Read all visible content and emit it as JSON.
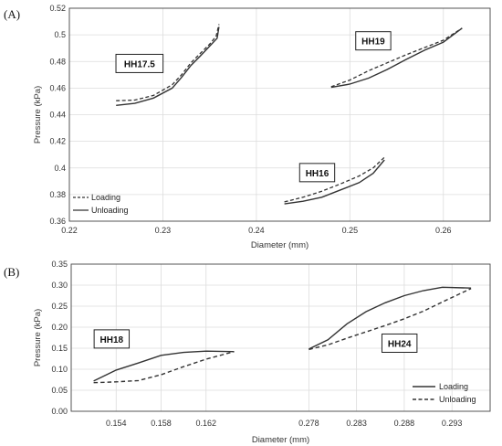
{
  "chart_data": [
    {
      "type": "line",
      "panel_label": "(A)",
      "xlabel": "Diameter (mm)",
      "ylabel": "Pressure (kPa)",
      "xlim": [
        0.22,
        0.265
      ],
      "ylim": [
        0.36,
        0.52
      ],
      "xticks": [
        0.22,
        0.23,
        0.24,
        0.25,
        0.26
      ],
      "xtick_labels": [
        "0.22",
        "0.23",
        "0.24",
        "0.25",
        "0.26"
      ],
      "yticks": [
        0.36,
        0.38,
        0.4,
        0.42,
        0.44,
        0.46,
        0.48,
        0.5,
        0.52
      ],
      "ytick_labels": [
        "0.36",
        "0.38",
        "0.4",
        "0.42",
        "0.44",
        "0.46",
        "0.48",
        "0.5",
        "0.52"
      ],
      "grid": true,
      "legend_position": "bottom-left",
      "legend": [
        {
          "name": "Loading",
          "style": "dashed"
        },
        {
          "name": "Unloading",
          "style": "solid"
        }
      ],
      "groups": [
        {
          "label": "HH17.5",
          "label_at": [
            0.2275,
            0.4785
          ],
          "loading": [
            [
              0.225,
              0.4505
            ],
            [
              0.227,
              0.451
            ],
            [
              0.229,
              0.4545
            ],
            [
              0.231,
              0.4625
            ],
            [
              0.232,
              0.47
            ],
            [
              0.233,
              0.479
            ],
            [
              0.234,
              0.486
            ],
            [
              0.235,
              0.493
            ],
            [
              0.2357,
              0.499
            ],
            [
              0.236,
              0.508
            ]
          ],
          "unloading": [
            [
              0.225,
              0.447
            ],
            [
              0.227,
              0.4485
            ],
            [
              0.229,
              0.4525
            ],
            [
              0.231,
              0.46
            ],
            [
              0.232,
              0.468
            ],
            [
              0.233,
              0.477
            ],
            [
              0.234,
              0.484
            ],
            [
              0.235,
              0.4915
            ],
            [
              0.2358,
              0.4975
            ],
            [
              0.236,
              0.506
            ]
          ]
        },
        {
          "label": "HH19",
          "label_at": [
            0.2525,
            0.4955
          ],
          "loading": [
            [
              0.248,
              0.461
            ],
            [
              0.25,
              0.466
            ],
            [
              0.252,
              0.473
            ],
            [
              0.254,
              0.479
            ],
            [
              0.256,
              0.485
            ],
            [
              0.258,
              0.4905
            ],
            [
              0.26,
              0.496
            ],
            [
              0.262,
              0.505
            ]
          ],
          "unloading": [
            [
              0.248,
              0.4605
            ],
            [
              0.25,
              0.463
            ],
            [
              0.252,
              0.4675
            ],
            [
              0.254,
              0.474
            ],
            [
              0.256,
              0.4815
            ],
            [
              0.258,
              0.4885
            ],
            [
              0.26,
              0.4945
            ],
            [
              0.262,
              0.505
            ]
          ]
        },
        {
          "label": "HH16",
          "label_at": [
            0.2465,
            0.3965
          ],
          "loading": [
            [
              0.243,
              0.3745
            ],
            [
              0.245,
              0.378
            ],
            [
              0.247,
              0.3825
            ],
            [
              0.249,
              0.388
            ],
            [
              0.251,
              0.394
            ],
            [
              0.2525,
              0.4
            ],
            [
              0.2537,
              0.408
            ]
          ],
          "unloading": [
            [
              0.243,
              0.373
            ],
            [
              0.245,
              0.375
            ],
            [
              0.247,
              0.378
            ],
            [
              0.249,
              0.3835
            ],
            [
              0.251,
              0.389
            ],
            [
              0.2525,
              0.396
            ],
            [
              0.2537,
              0.406
            ]
          ]
        }
      ]
    },
    {
      "type": "line",
      "panel_label": "(B)",
      "xlabel": "Diameter (mm)",
      "ylabel": "Pressure (kPa)",
      "ylim": [
        0,
        0.35
      ],
      "xtick_labels": [
        "0.154",
        "0.158",
        "0.162",
        "0.278",
        "0.283",
        "0.288",
        "0.293"
      ],
      "yticks": [
        0,
        0.05,
        0.1,
        0.15,
        0.2,
        0.25,
        0.3,
        0.35
      ],
      "ytick_labels": [
        "0.00",
        "0.05",
        "0.10",
        "0.15",
        "0.20",
        "0.25",
        "0.30",
        "0.35"
      ],
      "grid": true,
      "broken_x_axis": true,
      "legend_position": "bottom-right",
      "legend": [
        {
          "name": "Loading",
          "style": "solid"
        },
        {
          "name": "Unloading",
          "style": "dashed"
        }
      ],
      "segments": [
        {
          "xlim": [
            0.15,
            0.166
          ],
          "xticks": [
            0.154,
            0.158,
            0.162
          ],
          "groups": [
            {
              "label": "HH18",
              "label_at": [
                0.1536,
                0.172
              ],
              "loading": [
                [
                  0.152,
                  0.072
                ],
                [
                  0.154,
                  0.098
                ],
                [
                  0.156,
                  0.115
                ],
                [
                  0.158,
                  0.133
                ],
                [
                  0.16,
                  0.14
                ],
                [
                  0.162,
                  0.143
                ],
                [
                  0.1645,
                  0.142
                ]
              ],
              "unloading": [
                [
                  0.152,
                  0.068
                ],
                [
                  0.154,
                  0.07
                ],
                [
                  0.156,
                  0.073
                ],
                [
                  0.158,
                  0.087
                ],
                [
                  0.16,
                  0.106
                ],
                [
                  0.162,
                  0.124
                ],
                [
                  0.1645,
                  0.142
                ]
              ]
            }
          ]
        },
        {
          "xlim": [
            0.275,
            0.297
          ],
          "xticks": [
            0.278,
            0.283,
            0.288,
            0.293
          ],
          "groups": [
            {
              "label": "HH24",
              "label_at": [
                0.2875,
                0.162
              ],
              "loading": [
                [
                  0.278,
                  0.148
                ],
                [
                  0.28,
                  0.17
                ],
                [
                  0.282,
                  0.208
                ],
                [
                  0.284,
                  0.237
                ],
                [
                  0.286,
                  0.258
                ],
                [
                  0.288,
                  0.275
                ],
                [
                  0.29,
                  0.287
                ],
                [
                  0.292,
                  0.295
                ],
                [
                  0.295,
                  0.293
                ]
              ],
              "unloading": [
                [
                  0.278,
                  0.147
                ],
                [
                  0.28,
                  0.158
                ],
                [
                  0.282,
                  0.174
                ],
                [
                  0.284,
                  0.189
                ],
                [
                  0.286,
                  0.204
                ],
                [
                  0.288,
                  0.22
                ],
                [
                  0.29,
                  0.238
                ],
                [
                  0.292,
                  0.26
                ],
                [
                  0.295,
                  0.292
                ]
              ]
            }
          ]
        }
      ]
    }
  ]
}
